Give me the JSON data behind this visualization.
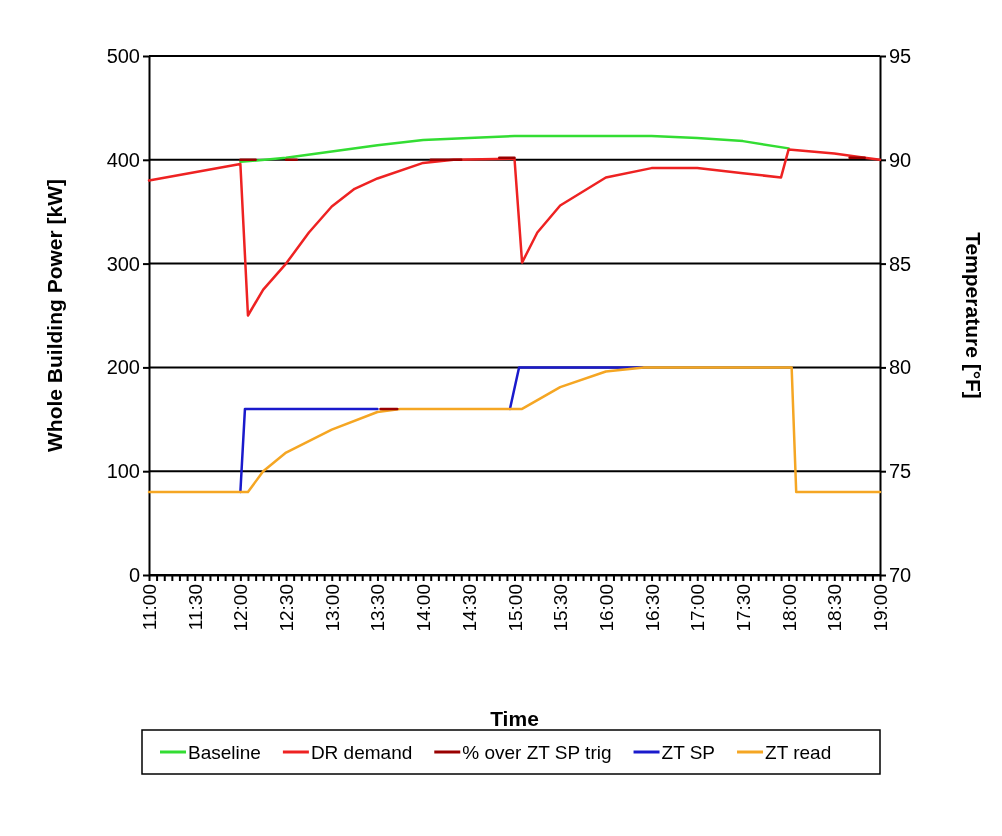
{
  "chart_data": {
    "type": "line",
    "xlabel": "Time",
    "ylabel": "Whole Building Power [kW]",
    "y2label": "Temperature [°F]",
    "xlim": [
      11,
      19
    ],
    "ylim": [
      0,
      500
    ],
    "yticks": [
      0,
      100,
      200,
      300,
      400,
      500
    ],
    "y2lim": [
      70,
      95
    ],
    "y2ticks": [
      70,
      75,
      80,
      85,
      90,
      95
    ],
    "xticks": [
      {
        "value": 11,
        "label": "11:00"
      },
      {
        "value": 11.083,
        "label": null
      },
      {
        "value": 11.167,
        "label": null
      },
      {
        "value": 11.25,
        "label": null
      },
      {
        "value": 11.333,
        "label": null
      },
      {
        "value": 11.417,
        "label": null
      },
      {
        "value": 11.5,
        "label": "11:30"
      },
      {
        "value": 11.583,
        "label": null
      },
      {
        "value": 11.667,
        "label": null
      },
      {
        "value": 11.75,
        "label": null
      },
      {
        "value": 11.833,
        "label": null
      },
      {
        "value": 11.917,
        "label": null
      },
      {
        "value": 12,
        "label": "12:00"
      },
      {
        "value": 12.083,
        "label": null
      },
      {
        "value": 12.167,
        "label": null
      },
      {
        "value": 12.25,
        "label": null
      },
      {
        "value": 12.333,
        "label": null
      },
      {
        "value": 12.417,
        "label": null
      },
      {
        "value": 12.5,
        "label": "12:30"
      },
      {
        "value": 12.583,
        "label": null
      },
      {
        "value": 12.667,
        "label": null
      },
      {
        "value": 12.75,
        "label": null
      },
      {
        "value": 12.833,
        "label": null
      },
      {
        "value": 12.917,
        "label": null
      },
      {
        "value": 13,
        "label": "13:00"
      },
      {
        "value": 13.083,
        "label": null
      },
      {
        "value": 13.167,
        "label": null
      },
      {
        "value": 13.25,
        "label": null
      },
      {
        "value": 13.333,
        "label": null
      },
      {
        "value": 13.417,
        "label": null
      },
      {
        "value": 13.5,
        "label": "13:30"
      },
      {
        "value": 13.583,
        "label": null
      },
      {
        "value": 13.667,
        "label": null
      },
      {
        "value": 13.75,
        "label": null
      },
      {
        "value": 13.833,
        "label": null
      },
      {
        "value": 13.917,
        "label": null
      },
      {
        "value": 14,
        "label": "14:00"
      },
      {
        "value": 14.083,
        "label": null
      },
      {
        "value": 14.167,
        "label": null
      },
      {
        "value": 14.25,
        "label": null
      },
      {
        "value": 14.333,
        "label": null
      },
      {
        "value": 14.417,
        "label": null
      },
      {
        "value": 14.5,
        "label": "14:30"
      },
      {
        "value": 14.583,
        "label": null
      },
      {
        "value": 14.667,
        "label": null
      },
      {
        "value": 14.75,
        "label": null
      },
      {
        "value": 14.833,
        "label": null
      },
      {
        "value": 14.917,
        "label": null
      },
      {
        "value": 15,
        "label": "15:00"
      },
      {
        "value": 15.083,
        "label": null
      },
      {
        "value": 15.167,
        "label": null
      },
      {
        "value": 15.25,
        "label": null
      },
      {
        "value": 15.333,
        "label": null
      },
      {
        "value": 15.417,
        "label": null
      },
      {
        "value": 15.5,
        "label": "15:30"
      },
      {
        "value": 15.583,
        "label": null
      },
      {
        "value": 15.667,
        "label": null
      },
      {
        "value": 15.75,
        "label": null
      },
      {
        "value": 15.833,
        "label": null
      },
      {
        "value": 15.917,
        "label": null
      },
      {
        "value": 16,
        "label": "16:00"
      },
      {
        "value": 16.083,
        "label": null
      },
      {
        "value": 16.167,
        "label": null
      },
      {
        "value": 16.25,
        "label": null
      },
      {
        "value": 16.333,
        "label": null
      },
      {
        "value": 16.417,
        "label": null
      },
      {
        "value": 16.5,
        "label": "16:30"
      },
      {
        "value": 16.583,
        "label": null
      },
      {
        "value": 16.667,
        "label": null
      },
      {
        "value": 16.75,
        "label": null
      },
      {
        "value": 16.833,
        "label": null
      },
      {
        "value": 16.917,
        "label": null
      },
      {
        "value": 17,
        "label": "17:00"
      },
      {
        "value": 17.083,
        "label": null
      },
      {
        "value": 17.167,
        "label": null
      },
      {
        "value": 17.25,
        "label": null
      },
      {
        "value": 17.333,
        "label": null
      },
      {
        "value": 17.417,
        "label": null
      },
      {
        "value": 17.5,
        "label": "17:30"
      },
      {
        "value": 17.583,
        "label": null
      },
      {
        "value": 17.667,
        "label": null
      },
      {
        "value": 17.75,
        "label": null
      },
      {
        "value": 17.833,
        "label": null
      },
      {
        "value": 17.917,
        "label": null
      },
      {
        "value": 18,
        "label": "18:00"
      },
      {
        "value": 18.083,
        "label": null
      },
      {
        "value": 18.167,
        "label": null
      },
      {
        "value": 18.25,
        "label": null
      },
      {
        "value": 18.333,
        "label": null
      },
      {
        "value": 18.417,
        "label": null
      },
      {
        "value": 18.5,
        "label": "18:30"
      },
      {
        "value": 18.583,
        "label": null
      },
      {
        "value": 18.667,
        "label": null
      },
      {
        "value": 18.75,
        "label": null
      },
      {
        "value": 18.833,
        "label": null
      },
      {
        "value": 18.917,
        "label": null
      },
      {
        "value": 19,
        "label": "19:00"
      }
    ],
    "grid": "y",
    "legend": "bottom",
    "marker": "none",
    "series": [
      {
        "name": "Baseline",
        "color": "#33dd33",
        "x": [
          12,
          12.5,
          13,
          13.5,
          14,
          14.5,
          15,
          15.5,
          16,
          16.5,
          17,
          17.5,
          18
        ],
        "values": [
          398,
          402,
          408,
          414,
          419,
          421,
          423,
          423,
          423,
          423,
          421,
          418,
          411
        ]
      },
      {
        "name": "DR demand",
        "color": "#ee2222",
        "x": [
          11,
          11.5,
          12,
          12.083,
          12.25,
          12.5,
          12.75,
          13,
          13.25,
          13.5,
          14,
          14.333,
          15,
          15.083,
          15.25,
          15.5,
          16,
          16.5,
          17,
          17.5,
          17.917,
          18,
          18.5,
          18.833,
          19
        ],
        "values": [
          380,
          388,
          396,
          250,
          275,
          300,
          330,
          355,
          372,
          382,
          397,
          400,
          401,
          301,
          330,
          356,
          383,
          392,
          392,
          387,
          383,
          410,
          406,
          402,
          400
        ]
      },
      {
        "name": "% over ZT SP trig",
        "color": "#990000",
        "x": [
          12,
          12.167,
          12.2,
          12.5,
          12.617,
          12.65,
          13.533,
          13.717,
          13.75,
          14.083,
          14.417,
          14.45,
          14.833,
          15,
          15.05,
          18.667,
          18.833
        ],
        "values": [
          400,
          400,
          null,
          400,
          400,
          null,
          160,
          160,
          null,
          400,
          400,
          null,
          402,
          402,
          null,
          402,
          402
        ]
      },
      {
        "name": "ZT SP",
        "color": "#1a1acc",
        "axis": "y2",
        "x": [
          12,
          12.05,
          13.5,
          13.75,
          14.95,
          15.05,
          16.4
        ],
        "values": [
          74,
          78,
          78,
          null,
          78,
          80,
          80
        ]
      },
      {
        "name": "ZT read",
        "color": "#f5a623",
        "axis": "y2",
        "x": [
          11,
          12.083,
          12.25,
          12.5,
          13,
          13.5,
          13.75,
          15,
          15.083,
          15.5,
          16,
          16.417,
          18.033,
          18.083,
          19
        ],
        "values": [
          74,
          74,
          75,
          75.9,
          77,
          77.85,
          78,
          78,
          78,
          79.05,
          79.8,
          80,
          80,
          74,
          74
        ]
      }
    ]
  }
}
